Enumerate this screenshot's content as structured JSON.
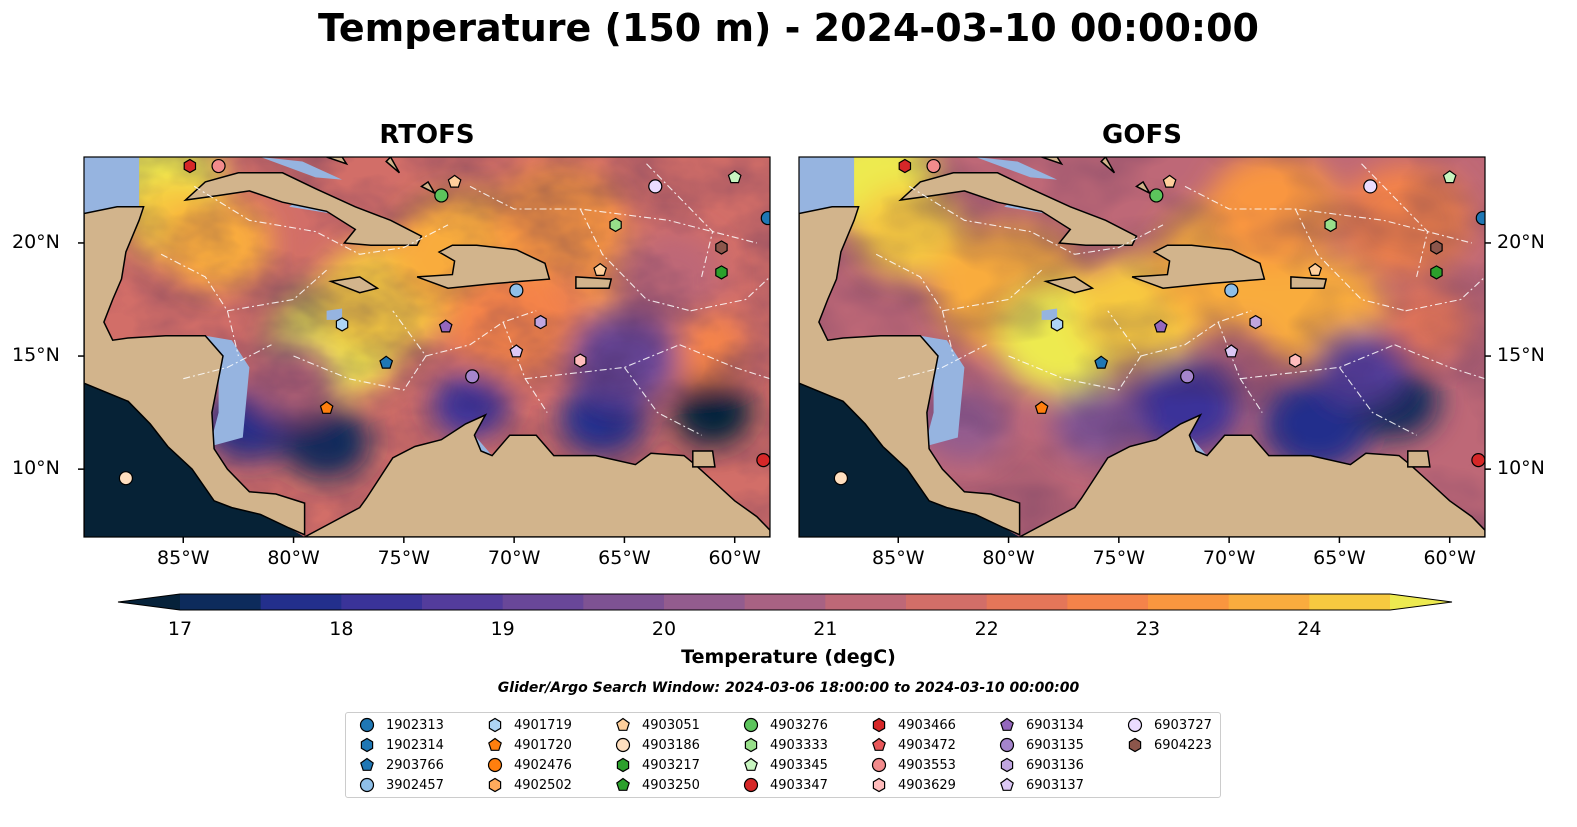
{
  "title": "Temperature (150 m) - 2024-03-10 00:00:00",
  "panels": [
    {
      "title": "RTOFS"
    },
    {
      "title": "GOFS"
    }
  ],
  "map_extent": {
    "lon_min": -89.5,
    "lon_max": -58.4,
    "lat_min": 7.0,
    "lat_max": 23.8
  },
  "lon_ticks": [
    "85°W",
    "80°W",
    "75°W",
    "70°W",
    "65°W",
    "60°W"
  ],
  "lon_tick_values": [
    -85,
    -80,
    -75,
    -70,
    -65,
    -60
  ],
  "lat_ticks": [
    "20°N",
    "15°N",
    "10°N"
  ],
  "lat_tick_values": [
    20,
    15,
    10
  ],
  "colors": {
    "land": "#d2b48c",
    "shallow_water": "#96b4e0",
    "coastline": "#000000",
    "eez_lines": "#ffffff"
  },
  "colorbar": {
    "label": "Temperature (degC)",
    "min": 16.5,
    "max": 24.5,
    "step": 0.5,
    "extend": "both",
    "ticks": [
      "17",
      "18",
      "19",
      "20",
      "21",
      "22",
      "23",
      "24"
    ],
    "tick_values": [
      17,
      18,
      19,
      20,
      21,
      22,
      23,
      24
    ],
    "colors": [
      "#06223a",
      "#0d2b5c",
      "#232f8c",
      "#3a3399",
      "#533c9c",
      "#694799",
      "#7e5293",
      "#935c8e",
      "#a86283",
      "#be6877",
      "#d26e68",
      "#e47659",
      "#f4834a",
      "#f9963f",
      "#f9ac3e",
      "#f7c940",
      "#edea50"
    ]
  },
  "search_window": "Glider/Argo Search Window: 2024-03-06 18:00:00 to 2024-03-10 00:00:00",
  "legend": [
    {
      "id": "1902313",
      "marker": "circle",
      "color": "#1f77b4"
    },
    {
      "id": "1902314",
      "marker": "hexagon",
      "color": "#1f77b4"
    },
    {
      "id": "2903766",
      "marker": "pentagon",
      "color": "#1f77b4"
    },
    {
      "id": "3902457",
      "marker": "circle",
      "color": "#8fbfe8"
    },
    {
      "id": "4901719",
      "marker": "hexagon",
      "color": "#aed4f5"
    },
    {
      "id": "4901720",
      "marker": "pentagon",
      "color": "#ff7f0e"
    },
    {
      "id": "4902476",
      "marker": "circle",
      "color": "#ff7f0e"
    },
    {
      "id": "4902502",
      "marker": "hexagon",
      "color": "#ffab5c"
    },
    {
      "id": "4903051",
      "marker": "pentagon",
      "color": "#ffcf9c"
    },
    {
      "id": "4903186",
      "marker": "circle",
      "color": "#ffdfbf"
    },
    {
      "id": "4903217",
      "marker": "hexagon",
      "color": "#2ca02c"
    },
    {
      "id": "4903250",
      "marker": "pentagon",
      "color": "#2ca02c"
    },
    {
      "id": "4903276",
      "marker": "circle",
      "color": "#5cc45c"
    },
    {
      "id": "4903333",
      "marker": "hexagon",
      "color": "#98df8a"
    },
    {
      "id": "4903345",
      "marker": "pentagon",
      "color": "#c8f5c0"
    },
    {
      "id": "4903347",
      "marker": "circle",
      "color": "#d62728"
    },
    {
      "id": "4903466",
      "marker": "hexagon",
      "color": "#d62728"
    },
    {
      "id": "4903472",
      "marker": "pentagon",
      "color": "#e8575a"
    },
    {
      "id": "4903553",
      "marker": "circle",
      "color": "#f28b8c"
    },
    {
      "id": "4903629",
      "marker": "hexagon",
      "color": "#ffbcbc"
    },
    {
      "id": "6903134",
      "marker": "pentagon",
      "color": "#9467bd"
    },
    {
      "id": "6903135",
      "marker": "circle",
      "color": "#a585cc"
    },
    {
      "id": "6903136",
      "marker": "hexagon",
      "color": "#c0a6e0"
    },
    {
      "id": "6903137",
      "marker": "pentagon",
      "color": "#dcc8f5"
    },
    {
      "id": "6903727",
      "marker": "circle",
      "color": "#ebdcff"
    },
    {
      "id": "6904223",
      "marker": "hexagon",
      "color": "#8c564b"
    }
  ],
  "floats": [
    {
      "id": "4903466",
      "lon": -84.7,
      "lat": 23.4
    },
    {
      "id": "4903553",
      "lon": -83.4,
      "lat": 23.4
    },
    {
      "id": "4903051",
      "lon": -72.7,
      "lat": 22.7
    },
    {
      "id": "4903276",
      "lon": -73.3,
      "lat": 22.1
    },
    {
      "id": "6903727",
      "lon": -63.6,
      "lat": 22.5
    },
    {
      "id": "4903345",
      "lon": -60.0,
      "lat": 22.9
    },
    {
      "id": "1902313",
      "lon": -58.5,
      "lat": 21.1
    },
    {
      "id": "4903333",
      "lon": -65.4,
      "lat": 20.8
    },
    {
      "id": "6904223",
      "lon": -60.6,
      "lat": 19.8
    },
    {
      "id": "4903217",
      "lon": -60.6,
      "lat": 18.7
    },
    {
      "id": "4903051",
      "lon": -66.1,
      "lat": 18.8
    },
    {
      "id": "3902457",
      "lon": -69.9,
      "lat": 17.9
    },
    {
      "id": "4901719",
      "lon": -77.8,
      "lat": 16.4
    },
    {
      "id": "6903134",
      "lon": -73.1,
      "lat": 16.3
    },
    {
      "id": "6903136",
      "lon": -68.8,
      "lat": 16.5
    },
    {
      "id": "6903137",
      "lon": -69.9,
      "lat": 15.2
    },
    {
      "id": "4903629",
      "lon": -67.0,
      "lat": 14.8
    },
    {
      "id": "2903766",
      "lon": -75.8,
      "lat": 14.7
    },
    {
      "id": "6903135",
      "lon": -71.9,
      "lat": 14.1
    },
    {
      "id": "4901720",
      "lon": -78.5,
      "lat": 12.7
    },
    {
      "id": "4903347",
      "lon": -58.7,
      "lat": 10.4
    },
    {
      "id": "4903186",
      "lon": -87.6,
      "lat": 9.6
    }
  ]
}
